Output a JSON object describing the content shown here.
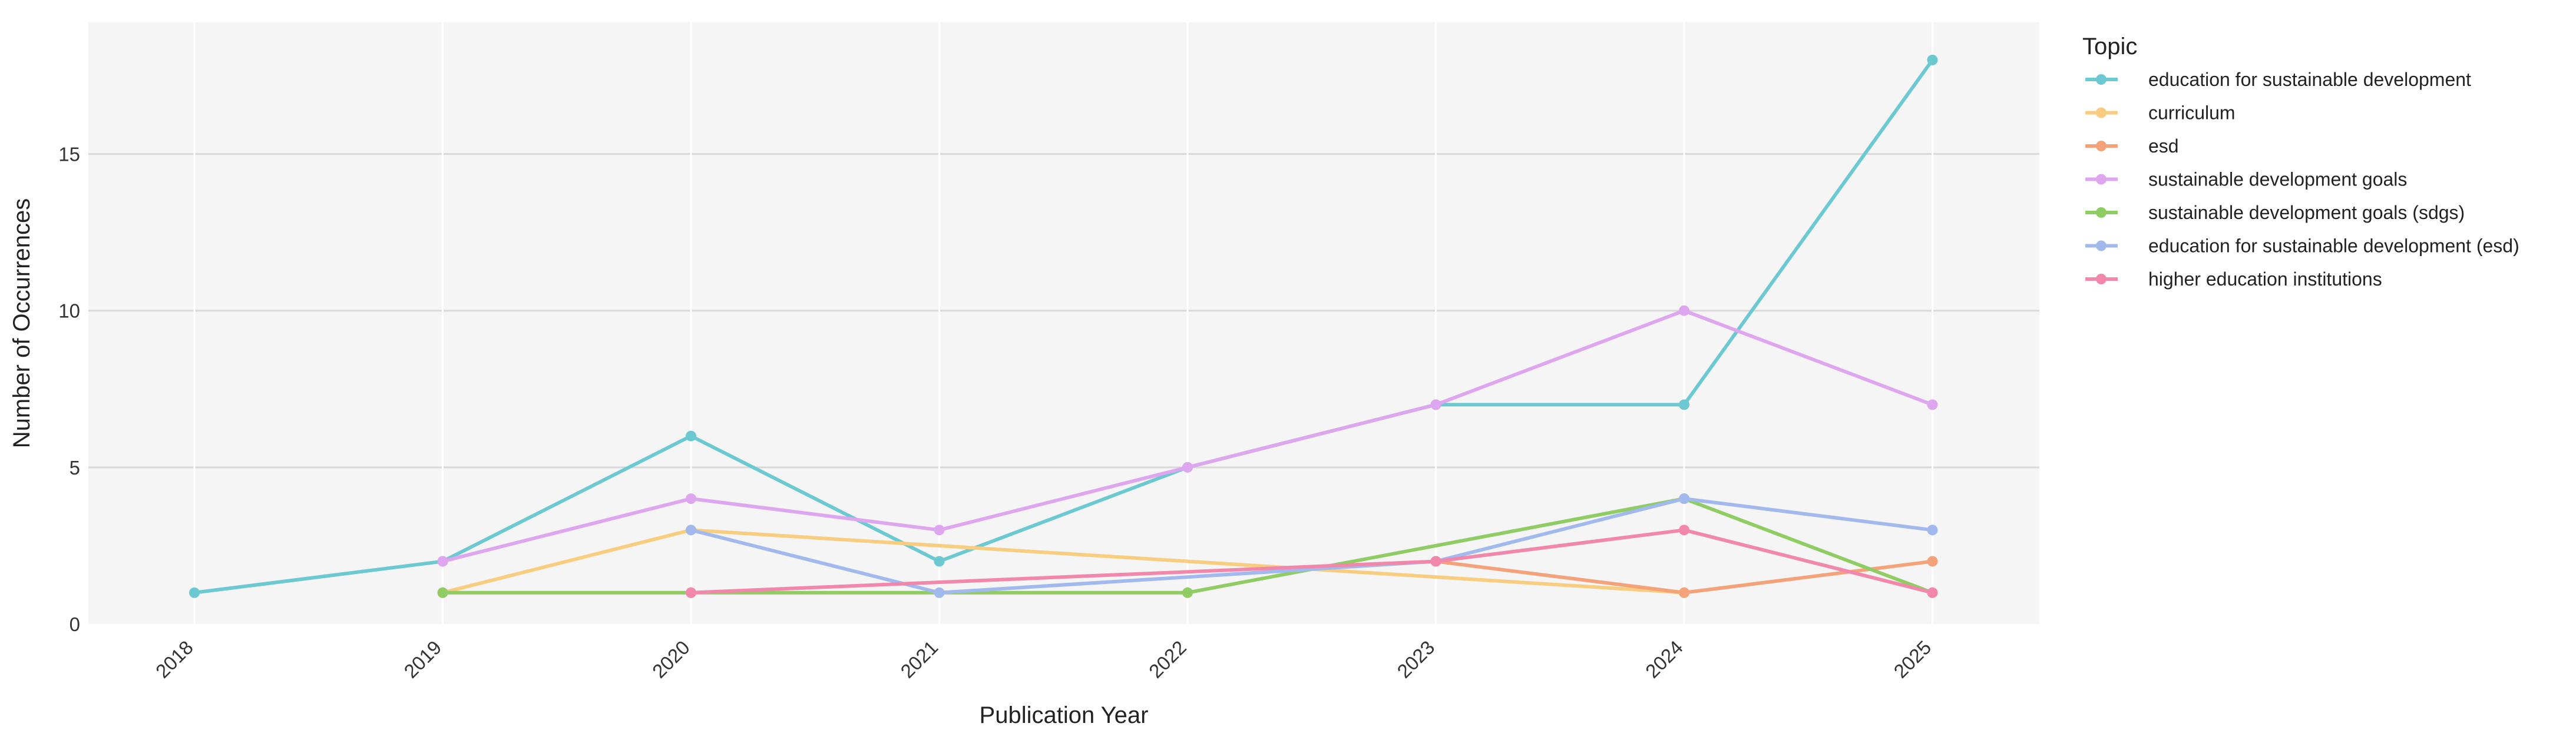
{
  "chart_data": {
    "type": "line",
    "title": "",
    "xlabel": "Publication Year",
    "ylabel": "Number of Occurrences",
    "x": [
      "2018",
      "2019",
      "2020",
      "2021",
      "2022",
      "2023",
      "2024",
      "2025"
    ],
    "ylim": [
      0,
      19.2
    ],
    "yticks": [
      "0",
      "5",
      "10",
      "15"
    ],
    "grid": true,
    "legend_title": "Topic",
    "legend_position": "right",
    "series": [
      {
        "name": "education for sustainable development",
        "color": "#6CC9D2",
        "values": [
          1,
          2,
          6,
          2,
          5,
          7,
          7,
          18
        ]
      },
      {
        "name": "curriculum",
        "color": "#F9CD7F",
        "values": [
          null,
          1,
          3,
          null,
          null,
          null,
          1,
          null
        ]
      },
      {
        "name": "esd",
        "color": "#F4A27A",
        "values": [
          null,
          null,
          null,
          null,
          null,
          2,
          1,
          2
        ]
      },
      {
        "name": "sustainable development goals",
        "color": "#DDA6EE",
        "values": [
          null,
          2,
          4,
          3,
          5,
          7,
          10,
          7
        ]
      },
      {
        "name": "sustainable development goals (sdgs)",
        "color": "#8FCC63",
        "values": [
          null,
          1,
          1,
          null,
          1,
          null,
          4,
          1
        ]
      },
      {
        "name": "education for sustainable development (esd)",
        "color": "#A2B9EE",
        "values": [
          null,
          null,
          3,
          1,
          null,
          2,
          4,
          3
        ]
      },
      {
        "name": "higher education institutions",
        "color": "#F287AC",
        "values": [
          null,
          null,
          1,
          null,
          null,
          2,
          3,
          1
        ]
      }
    ]
  }
}
